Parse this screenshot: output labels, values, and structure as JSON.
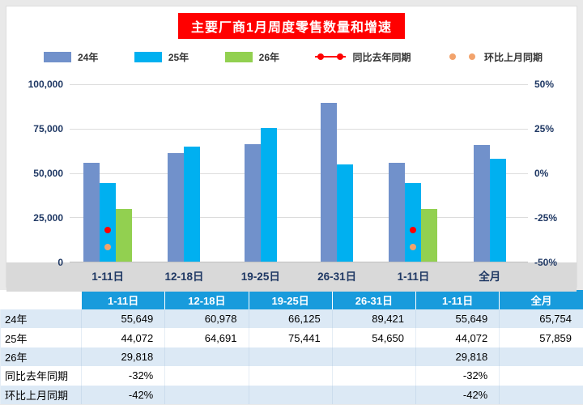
{
  "chart": {
    "title": "主要厂商1月周度零售数量和增速",
    "legend": [
      {
        "label": "24年",
        "marker": "bar",
        "color": "#7191CB"
      },
      {
        "label": "25年",
        "marker": "bar",
        "color": "#00B0F0"
      },
      {
        "label": "26年",
        "marker": "bar",
        "color": "#92D050"
      },
      {
        "label": "同比去年同期",
        "marker": "line-dots",
        "color": "#FF0000"
      },
      {
        "label": "环比上月同期",
        "marker": "dots",
        "color": "#F2A36C"
      }
    ],
    "left_axis_ticks": [
      {
        "label": "100,000",
        "value": 100000
      },
      {
        "label": "75,000",
        "value": 75000
      },
      {
        "label": "50,000",
        "value": 50000
      },
      {
        "label": "25,000",
        "value": 25000
      },
      {
        "label": "0",
        "value": 0
      }
    ],
    "right_axis_ticks": [
      {
        "label": "50%",
        "value": 50
      },
      {
        "label": "25%",
        "value": 25
      },
      {
        "label": "0%",
        "value": 0
      },
      {
        "label": "-25%",
        "value": -25
      },
      {
        "label": "-50%",
        "value": -50
      }
    ]
  },
  "chart_data": {
    "type": "bar",
    "title": "主要厂商1月周度零售数量和增速",
    "categories": [
      "1-11日",
      "12-18日",
      "19-25日",
      "26-31日",
      "1-11日",
      "全月"
    ],
    "series": [
      {
        "name": "24年",
        "type": "bar",
        "axis": "left",
        "color": "#7191CB",
        "values": [
          55649,
          60978,
          66125,
          89421,
          55649,
          65754
        ]
      },
      {
        "name": "25年",
        "type": "bar",
        "axis": "left",
        "color": "#00B0F0",
        "values": [
          44072,
          64691,
          75441,
          54650,
          44072,
          57859
        ]
      },
      {
        "name": "26年",
        "type": "bar",
        "axis": "left",
        "color": "#92D050",
        "values": [
          29818,
          null,
          null,
          null,
          29818,
          null
        ]
      },
      {
        "name": "同比去年同期",
        "type": "point",
        "axis": "right",
        "color": "#FF0000",
        "values": [
          -32,
          null,
          null,
          null,
          -32,
          null
        ]
      },
      {
        "name": "环比上月同期",
        "type": "point",
        "axis": "right",
        "color": "#F2A36C",
        "values": [
          -42,
          null,
          null,
          null,
          -42,
          null
        ]
      }
    ],
    "left_ylim": [
      0,
      100000
    ],
    "right_ylim": [
      -50,
      50
    ],
    "grid": true,
    "legend_position": "top"
  },
  "table": {
    "columns": [
      "",
      "1-11日",
      "12-18日",
      "19-25日",
      "26-31日",
      "1-11日",
      "全月"
    ],
    "rows": [
      {
        "label": "24年",
        "values": [
          "55,649",
          "60,978",
          "66,125",
          "89,421",
          "55,649",
          "65,754"
        ]
      },
      {
        "label": "25年",
        "values": [
          "44,072",
          "64,691",
          "75,441",
          "54,650",
          "44,072",
          "57,859"
        ]
      },
      {
        "label": "26年",
        "values": [
          "29,818",
          "",
          "",
          "",
          "29,818",
          ""
        ]
      },
      {
        "label": "同比去年同期",
        "values": [
          "-32%",
          "",
          "",
          "",
          "-32%",
          ""
        ]
      },
      {
        "label": "环比上月同期",
        "values": [
          "-42%",
          "",
          "",
          "",
          "-42%",
          ""
        ]
      }
    ]
  },
  "colors": {
    "title_bg": "#FF0000",
    "bar_24": "#7191CB",
    "bar_25": "#00B0F0",
    "bar_26": "#92D050",
    "yoy_dot": "#FF0000",
    "mom_dot": "#F2A36C",
    "table_header_bg": "#189BDC",
    "table_shade_row": "#DCE9F5",
    "x_band_bg": "#D9D9D9",
    "axis_text": "#1F3864",
    "page_bg": "#E9E9E9"
  }
}
